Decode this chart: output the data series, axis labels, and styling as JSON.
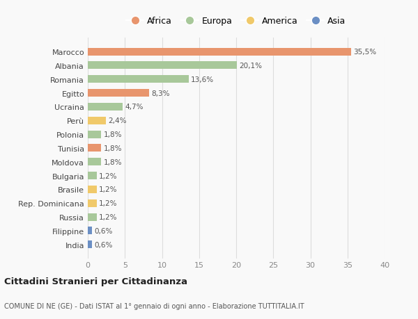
{
  "categories": [
    "India",
    "Filippine",
    "Russia",
    "Rep. Dominicana",
    "Brasile",
    "Bulgaria",
    "Moldova",
    "Tunisia",
    "Polonia",
    "Perù",
    "Ucraina",
    "Egitto",
    "Romania",
    "Albania",
    "Marocco"
  ],
  "values": [
    0.6,
    0.6,
    1.2,
    1.2,
    1.2,
    1.2,
    1.8,
    1.8,
    1.8,
    2.4,
    4.7,
    8.3,
    13.6,
    20.1,
    35.5
  ],
  "labels": [
    "0,6%",
    "0,6%",
    "1,2%",
    "1,2%",
    "1,2%",
    "1,2%",
    "1,8%",
    "1,8%",
    "1,8%",
    "2,4%",
    "4,7%",
    "8,3%",
    "13,6%",
    "20,1%",
    "35,5%"
  ],
  "colors": [
    "#6b8fc4",
    "#6b8fc4",
    "#a8c89a",
    "#f0c96a",
    "#f0c96a",
    "#a8c89a",
    "#a8c89a",
    "#e8956d",
    "#a8c89a",
    "#f0c96a",
    "#a8c89a",
    "#e8956d",
    "#a8c89a",
    "#a8c89a",
    "#e8956d"
  ],
  "legend": [
    {
      "label": "Africa",
      "color": "#e8956d"
    },
    {
      "label": "Europa",
      "color": "#a8c89a"
    },
    {
      "label": "America",
      "color": "#f0c96a"
    },
    {
      "label": "Asia",
      "color": "#6b8fc4"
    }
  ],
  "xlim": [
    0,
    40
  ],
  "xticks": [
    0,
    5,
    10,
    15,
    20,
    25,
    30,
    35,
    40
  ],
  "title": "Cittadini Stranieri per Cittadinanza",
  "subtitle": "COMUNE DI NE (GE) - Dati ISTAT al 1° gennaio di ogni anno - Elaborazione TUTTITALIA.IT",
  "background_color": "#f9f9f9",
  "grid_color": "#dddddd"
}
